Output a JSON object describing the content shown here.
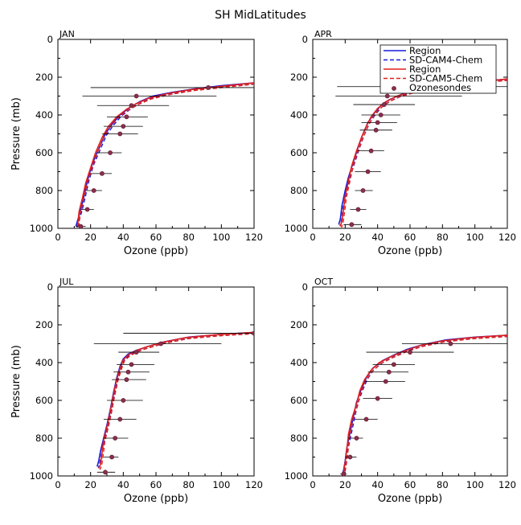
{
  "figure": {
    "title": "SH MidLatitudes"
  },
  "legend": {
    "items": [
      {
        "label": "Region",
        "color": "#1a1adb",
        "style": "solid",
        "marker": "none"
      },
      {
        "label": "SD-CAM4-Chem",
        "color": "#1a1adb",
        "style": "dashed",
        "marker": "none"
      },
      {
        "label": "Region",
        "color": "#e0201a",
        "style": "solid",
        "marker": "none"
      },
      {
        "label": "SD-CAM5-Chem",
        "color": "#e0201a",
        "style": "dashed",
        "marker": "none"
      },
      {
        "label": "Ozonesondes",
        "color": "#8b2e4a",
        "style": "none",
        "marker": "circle"
      }
    ]
  },
  "colors": {
    "cam4": "#1a1adb",
    "cam5": "#e0201a",
    "sonde": "#8b2e4a",
    "errorbar": "#000000"
  },
  "chart_data": [
    {
      "type": "line",
      "panel": "JAN",
      "xlabel": "Ozone (ppb)",
      "ylabel": "Pressure (mb)",
      "xlim": [
        0,
        120
      ],
      "ylim": [
        1000,
        0
      ],
      "xticks": [
        "0",
        "20",
        "40",
        "60",
        "80",
        "100",
        "120"
      ],
      "yticks": [
        "0",
        "200",
        "400",
        "600",
        "800",
        "1000"
      ],
      "series": [
        {
          "key": "cam4",
          "points": [
            [
              120,
              230
            ],
            [
              100,
              245
            ],
            [
              85,
              260
            ],
            [
              70,
              280
            ],
            [
              58,
              300
            ],
            [
              50,
              330
            ],
            [
              44,
              360
            ],
            [
              38,
              400
            ],
            [
              33,
              450
            ],
            [
              29,
              500
            ],
            [
              25,
              580
            ],
            [
              21,
              660
            ],
            [
              18,
              750
            ],
            [
              16,
              830
            ],
            [
              14,
              900
            ],
            [
              12,
              960
            ],
            [
              11,
              990
            ]
          ]
        },
        {
          "key": "cam5",
          "points": [
            [
              120,
              230
            ],
            [
              98,
              250
            ],
            [
              82,
              265
            ],
            [
              68,
              285
            ],
            [
              56,
              310
            ],
            [
              48,
              340
            ],
            [
              42,
              370
            ],
            [
              36,
              410
            ],
            [
              31,
              460
            ],
            [
              27,
              520
            ],
            [
              23,
              600
            ],
            [
              20,
              680
            ],
            [
              17,
              760
            ],
            [
              15,
              840
            ],
            [
              13,
              910
            ],
            [
              12,
              990
            ]
          ]
        },
        {
          "key": "sonde",
          "points": [
            [
              92,
              255,
              20,
              120
            ],
            [
              48,
              300,
              15,
              97
            ],
            [
              45,
              350,
              24,
              68
            ],
            [
              42,
              410,
              30,
              55
            ],
            [
              40,
              460,
              28,
              52
            ],
            [
              38,
              500,
              27,
              49
            ],
            [
              32,
              600,
              24,
              39
            ],
            [
              27,
              710,
              20,
              33
            ],
            [
              22,
              800,
              17,
              27
            ],
            [
              18,
              900,
              14,
              22
            ],
            [
              14,
              990,
              11,
              17
            ]
          ]
        }
      ]
    },
    {
      "type": "line",
      "panel": "APR",
      "xlabel": "Ozone (ppb)",
      "ylabel": "",
      "xlim": [
        0,
        120
      ],
      "ylim": [
        1000,
        0
      ],
      "xticks": [
        "0",
        "20",
        "40",
        "60",
        "80",
        "100",
        "120"
      ],
      "yticks": [
        "0",
        "200",
        "400",
        "600",
        "800",
        "1000"
      ],
      "series": [
        {
          "key": "cam4",
          "points": [
            [
              120,
              210
            ],
            [
              100,
              225
            ],
            [
              80,
              245
            ],
            [
              65,
              265
            ],
            [
              55,
              290
            ],
            [
              47,
              320
            ],
            [
              42,
              350
            ],
            [
              38,
              390
            ],
            [
              34,
              440
            ],
            [
              31,
              500
            ],
            [
              28,
              570
            ],
            [
              25,
              650
            ],
            [
              22,
              730
            ],
            [
              20,
              800
            ],
            [
              18,
              880
            ],
            [
              17,
              950
            ],
            [
              16,
              980
            ]
          ]
        },
        {
          "key": "cam5",
          "points": [
            [
              120,
              210
            ],
            [
              96,
              230
            ],
            [
              78,
              250
            ],
            [
              62,
              275
            ],
            [
              52,
              300
            ],
            [
              45,
              330
            ],
            [
              40,
              365
            ],
            [
              36,
              410
            ],
            [
              33,
              460
            ],
            [
              30,
              520
            ],
            [
              27,
              590
            ],
            [
              24,
              670
            ],
            [
              22,
              750
            ],
            [
              20,
              830
            ],
            [
              19,
              900
            ],
            [
              18,
              960
            ],
            [
              17,
              990
            ]
          ]
        },
        {
          "key": "sonde",
          "points": [
            [
              72,
              250,
              15,
              120
            ],
            [
              46,
              300,
              14,
              92
            ],
            [
              44,
              345,
              25,
              63
            ],
            [
              42,
              400,
              30,
              54
            ],
            [
              40,
              440,
              30,
              52
            ],
            [
              39,
              480,
              29,
              49
            ],
            [
              36,
              590,
              28,
              44
            ],
            [
              34,
              700,
              26,
              42
            ],
            [
              31,
              800,
              26,
              37
            ],
            [
              28,
              900,
              23,
              33
            ],
            [
              24,
              980,
              19,
              30
            ]
          ]
        }
      ]
    },
    {
      "type": "line",
      "panel": "JUL",
      "xlabel": "Ozone (ppb)",
      "ylabel": "Pressure (mb)",
      "xlim": [
        0,
        120
      ],
      "ylim": [
        1000,
        0
      ],
      "xticks": [
        "0",
        "20",
        "40",
        "60",
        "80",
        "100",
        "120"
      ],
      "yticks": [
        "0",
        "200",
        "400",
        "600",
        "800",
        "1000"
      ],
      "series": [
        {
          "key": "cam4",
          "points": [
            [
              120,
              240
            ],
            [
              100,
              250
            ],
            [
              80,
              265
            ],
            [
              65,
              290
            ],
            [
              55,
              315
            ],
            [
              48,
              335
            ],
            [
              43,
              355
            ],
            [
              40,
              380
            ],
            [
              38,
              420
            ],
            [
              36,
              480
            ],
            [
              34,
              560
            ],
            [
              32,
              650
            ],
            [
              30,
              730
            ],
            [
              28,
              800
            ],
            [
              26,
              870
            ],
            [
              25,
              920
            ],
            [
              24,
              950
            ]
          ]
        },
        {
          "key": "cam5",
          "points": [
            [
              120,
              240
            ],
            [
              98,
              252
            ],
            [
              78,
              268
            ],
            [
              63,
              295
            ],
            [
              53,
              320
            ],
            [
              47,
              340
            ],
            [
              43,
              360
            ],
            [
              40,
              385
            ],
            [
              38,
              430
            ],
            [
              36,
              490
            ],
            [
              34,
              570
            ],
            [
              32,
              660
            ],
            [
              30,
              740
            ],
            [
              28,
              810
            ],
            [
              27,
              880
            ],
            [
              26,
              940
            ],
            [
              25,
              960
            ]
          ]
        },
        {
          "key": "sonde",
          "points": [
            [
              120,
              245,
              40,
              120
            ],
            [
              63,
              300,
              22,
              100
            ],
            [
              48,
              345,
              37,
              62
            ],
            [
              45,
              410,
              36,
              59
            ],
            [
              43,
              450,
              34,
              56
            ],
            [
              42,
              490,
              33,
              54
            ],
            [
              40,
              600,
              30,
              52
            ],
            [
              38,
              700,
              28,
              48
            ],
            [
              35,
              800,
              28,
              43
            ],
            [
              33,
              900,
              28,
              37
            ],
            [
              29,
              980,
              24,
              35
            ]
          ]
        }
      ]
    },
    {
      "type": "line",
      "panel": "OCT",
      "xlabel": "Ozone (ppb)",
      "ylabel": "",
      "xlim": [
        0,
        120
      ],
      "ylim": [
        1000,
        0
      ],
      "xticks": [
        "0",
        "20",
        "40",
        "60",
        "80",
        "100",
        "120"
      ],
      "yticks": [
        "0",
        "200",
        "400",
        "600",
        "800",
        "1000"
      ],
      "series": [
        {
          "key": "cam4",
          "points": [
            [
              120,
              255
            ],
            [
              100,
              265
            ],
            [
              82,
              280
            ],
            [
              68,
              305
            ],
            [
              58,
              330
            ],
            [
              50,
              360
            ],
            [
              43,
              390
            ],
            [
              37,
              430
            ],
            [
              33,
              480
            ],
            [
              30,
              540
            ],
            [
              27,
              610
            ],
            [
              25,
              690
            ],
            [
              23,
              770
            ],
            [
              21,
              850
            ],
            [
              20,
              920
            ],
            [
              19,
              970
            ],
            [
              18,
              995
            ]
          ]
        },
        {
          "key": "cam5",
          "points": [
            [
              120,
              255
            ],
            [
              97,
              268
            ],
            [
              80,
              285
            ],
            [
              66,
              310
            ],
            [
              56,
              340
            ],
            [
              48,
              370
            ],
            [
              41,
              400
            ],
            [
              36,
              440
            ],
            [
              32,
              490
            ],
            [
              29,
              550
            ],
            [
              27,
              620
            ],
            [
              24,
              700
            ],
            [
              22,
              780
            ],
            [
              21,
              860
            ],
            [
              20,
              930
            ],
            [
              19,
              980
            ],
            [
              18,
              995
            ]
          ]
        },
        {
          "key": "sonde",
          "points": [
            [
              85,
              300,
              55,
              120
            ],
            [
              60,
              345,
              33,
              87
            ],
            [
              50,
              410,
              37,
              63
            ],
            [
              47,
              450,
              34,
              59
            ],
            [
              45,
              500,
              32,
              57
            ],
            [
              40,
              590,
              31,
              49
            ],
            [
              33,
              700,
              26,
              40
            ],
            [
              27,
              800,
              22,
              31
            ],
            [
              23,
              900,
              20,
              27
            ],
            [
              19,
              990,
              17,
              21
            ]
          ]
        }
      ]
    }
  ]
}
